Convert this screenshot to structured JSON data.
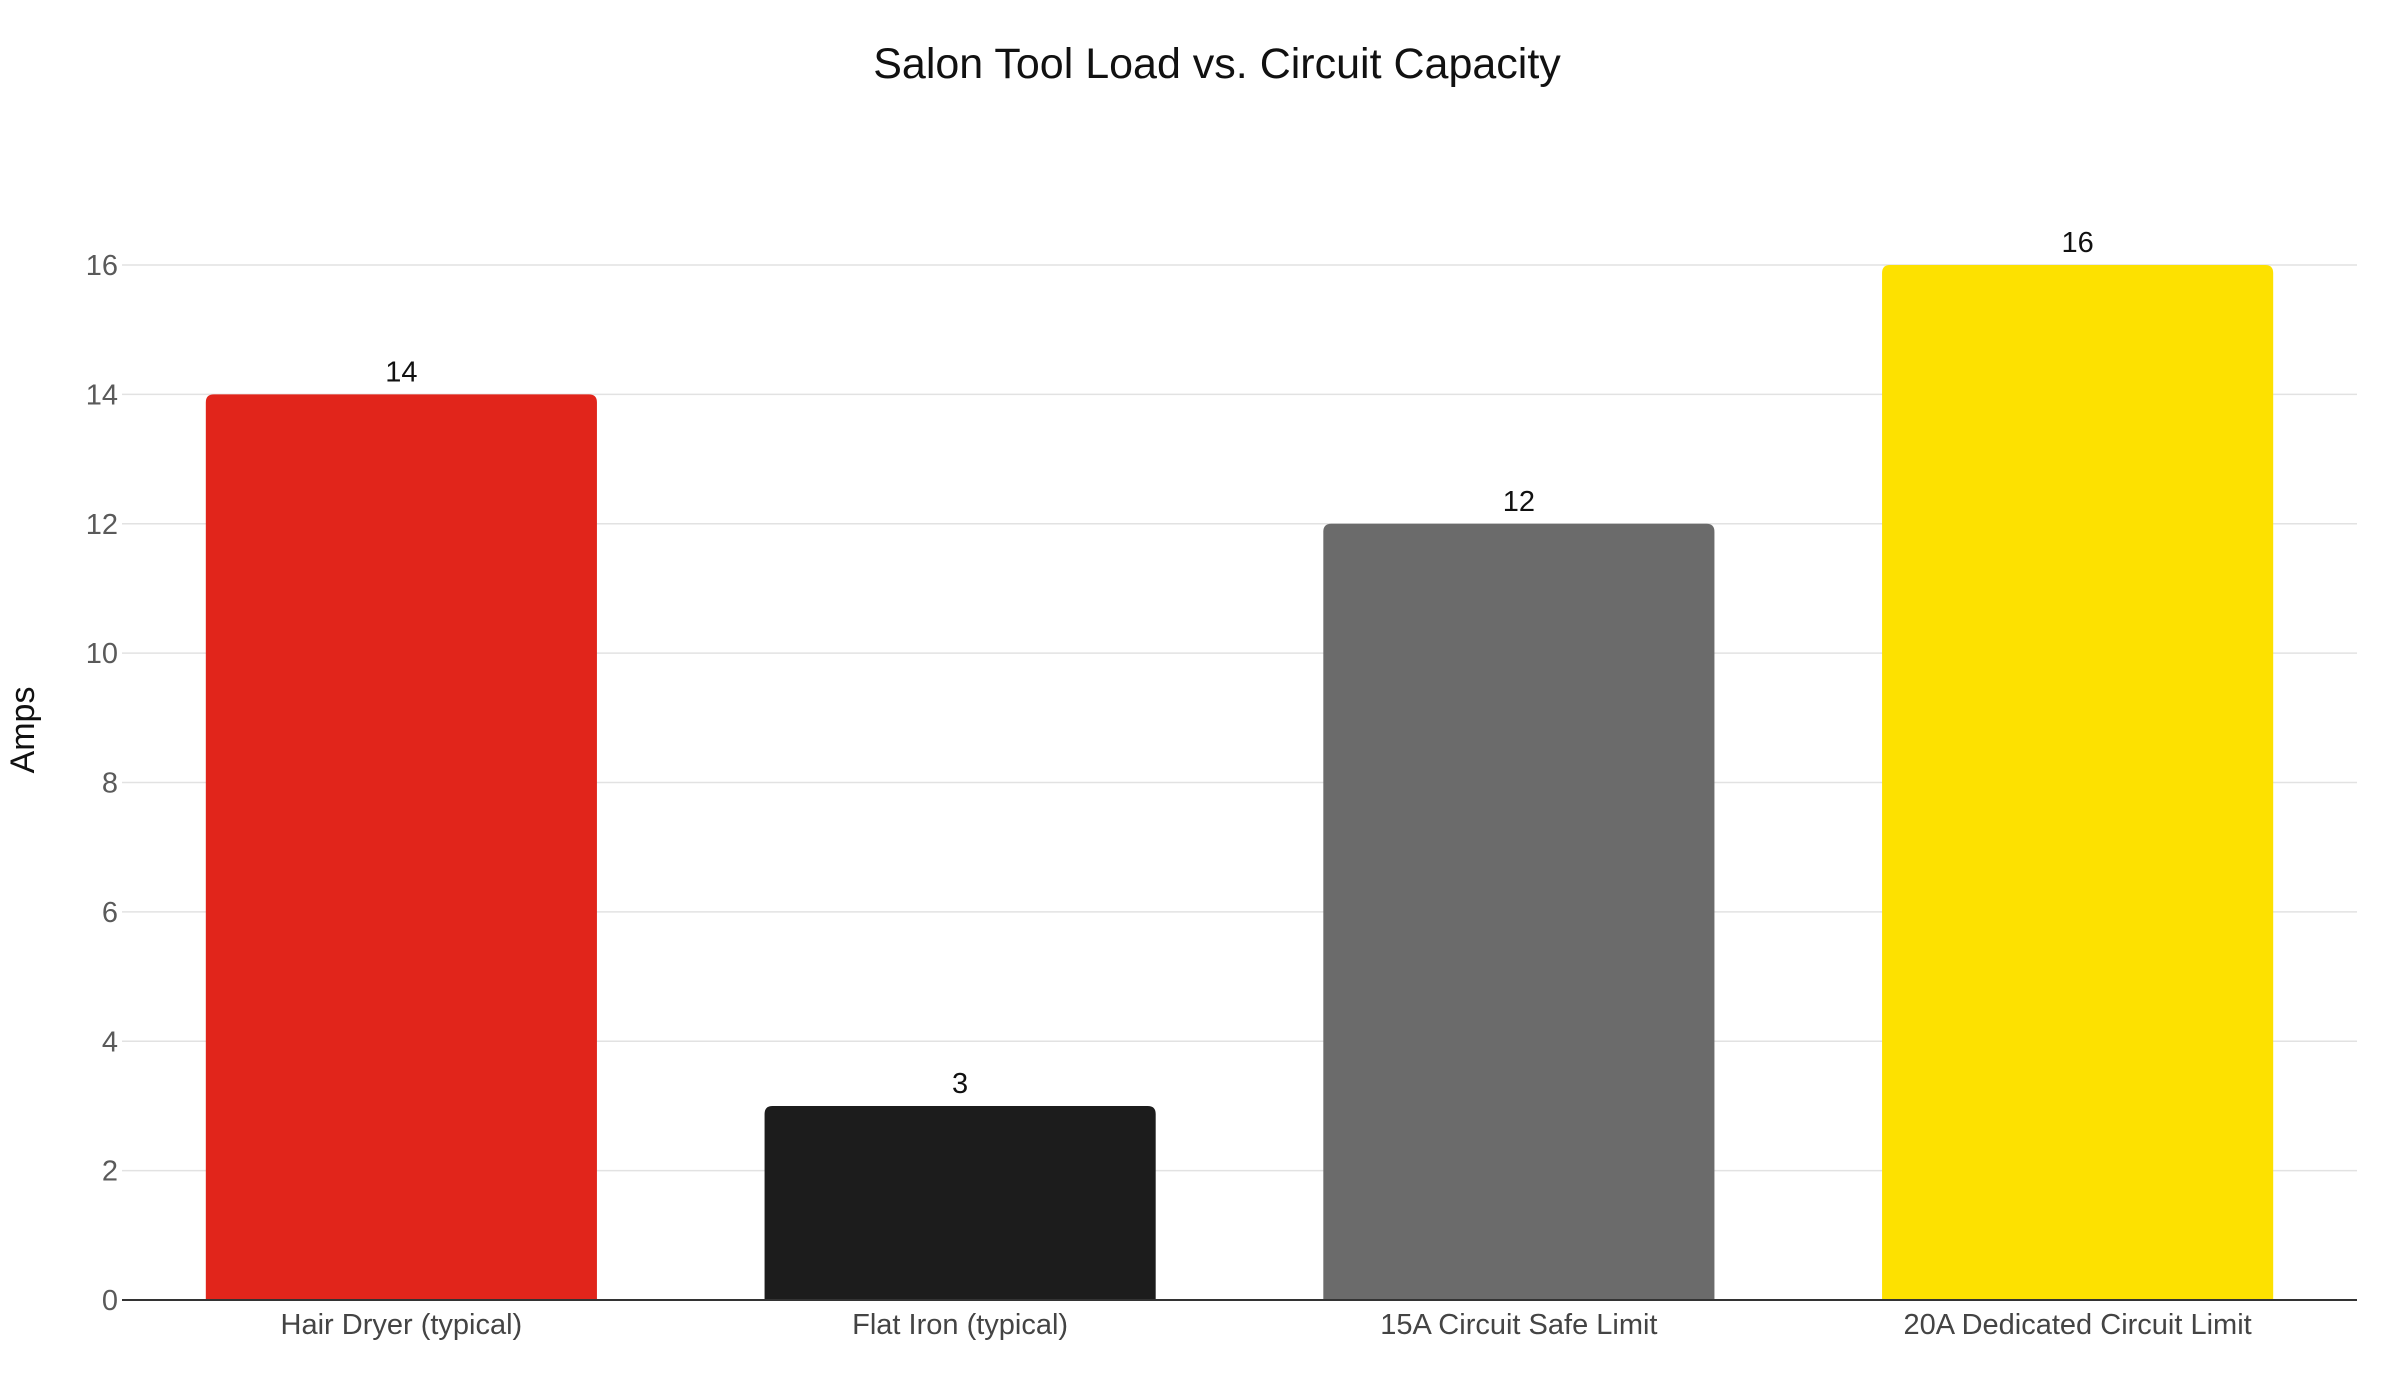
{
  "chart_data": {
    "type": "bar",
    "title": "Salon Tool Load vs. Circuit Capacity",
    "xlabel": "",
    "ylabel": "Amps",
    "categories": [
      "Hair Dryer (typical)",
      "Flat Iron (typical)",
      "15A Circuit Safe Limit",
      "20A Dedicated Circuit Limit"
    ],
    "values": [
      14,
      3,
      12,
      16
    ],
    "data_labels": [
      "14",
      "3",
      "12",
      "16"
    ],
    "colors": [
      "#e1251b",
      "#1c1c1c",
      "#6b6b6b",
      "#fde100"
    ],
    "ylim": [
      0,
      16
    ],
    "yticks": [
      0,
      2,
      4,
      6,
      8,
      10,
      12,
      14,
      16
    ],
    "grid": true,
    "legend": "none"
  }
}
